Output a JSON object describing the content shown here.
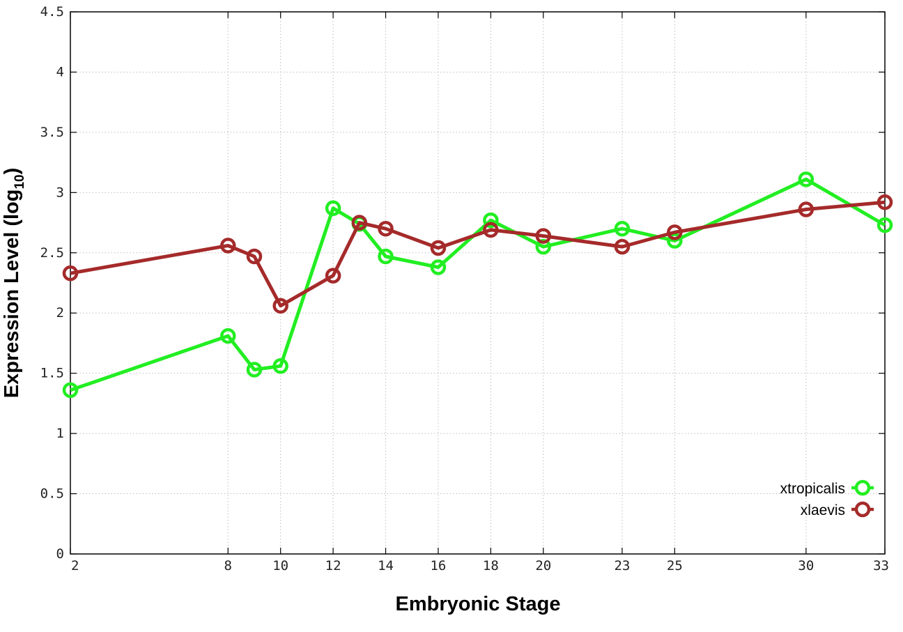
{
  "chart_data": {
    "type": "line",
    "title": "",
    "xlabel": "Embryonic Stage",
    "ylabel": {
      "main": "Expression Level (log",
      "subscript": "10",
      "close": ")"
    },
    "x": [
      2,
      8,
      9,
      10,
      12,
      13,
      14,
      16,
      18,
      20,
      23,
      25,
      30,
      33
    ],
    "x_tick_labels": [
      "2",
      "8",
      "10",
      "12",
      "14",
      "16",
      "18",
      "20",
      "23",
      "25",
      "30",
      "33"
    ],
    "ylim": [
      0,
      4.5
    ],
    "y_ticks": [
      "0",
      "0.5",
      "1",
      "1.5",
      "2",
      "2.5",
      "3",
      "3.5",
      "4",
      "4.5"
    ],
    "grid": true,
    "legend_position": "bottom-right",
    "series": [
      {
        "name": "xtropicalis",
        "color": "#22ee22",
        "marker": "open-circle",
        "values": [
          1.36,
          1.81,
          1.53,
          1.56,
          2.87,
          2.74,
          2.47,
          2.38,
          2.77,
          2.55,
          2.7,
          2.6,
          3.11,
          2.73
        ]
      },
      {
        "name": "xlaevis",
        "color": "#a52a2a",
        "marker": "open-circle",
        "values": [
          2.33,
          2.56,
          2.47,
          2.06,
          2.31,
          2.75,
          2.7,
          2.54,
          2.69,
          2.64,
          2.55,
          2.67,
          2.86,
          2.92
        ]
      }
    ]
  }
}
